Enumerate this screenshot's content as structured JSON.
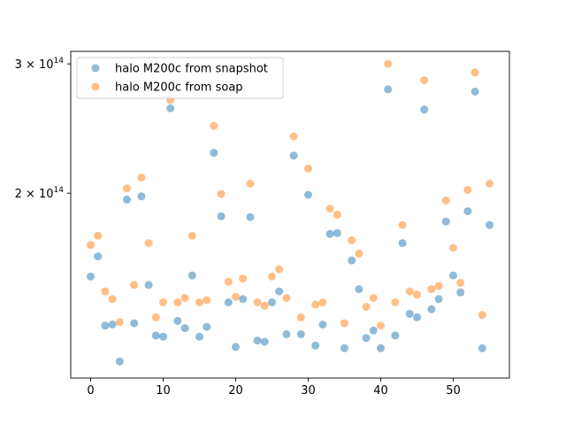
{
  "chart_data": {
    "type": "scatter",
    "title": "",
    "xlabel": "",
    "ylabel": "",
    "y_scale": "log",
    "xlim": [
      -2.75,
      57.75
    ],
    "ylim": [
      112000000000000.0,
      312000000000000.0
    ],
    "x_ticks": [
      0,
      10,
      20,
      30,
      40,
      50
    ],
    "x_tick_labels": [
      "0",
      "10",
      "20",
      "30",
      "40",
      "50"
    ],
    "y_ticks": [
      200000000000000.0,
      300000000000000.0
    ],
    "y_tick_labels": [
      {
        "mantissa": "2",
        "times": "×",
        "base": "10",
        "exp": "14"
      },
      {
        "mantissa": "3",
        "times": "×",
        "base": "10",
        "exp": "14"
      }
    ],
    "grid": false,
    "legend_position": "upper left",
    "series": [
      {
        "name": "halo M200c from snapshot",
        "color": "#1f77b4",
        "x": [
          0,
          1,
          2,
          3,
          4,
          5,
          6,
          7,
          8,
          9,
          10,
          11,
          12,
          13,
          14,
          15,
          16,
          17,
          18,
          19,
          20,
          21,
          22,
          23,
          24,
          25,
          26,
          27,
          28,
          29,
          30,
          31,
          32,
          33,
          34,
          35,
          36,
          37,
          38,
          39,
          40,
          41,
          42,
          43,
          44,
          45,
          46,
          47,
          48,
          49,
          50,
          51,
          52,
          53,
          54,
          55
        ],
        "y": [
          154000000000000.0,
          164000000000000.0,
          132000000000000.0,
          132500000000000.0,
          118000000000000.0,
          196000000000000.0,
          133000000000000.0,
          198000000000000.0,
          150000000000000.0,
          128000000000000.0,
          127500000000000.0,
          261000000000000.0,
          134000000000000.0,
          131000000000000.0,
          154500000000000.0,
          127500000000000.0,
          131500000000000.0,
          227000000000000.0,
          186000000000000.0,
          142000000000000.0,
          123500000000000.0,
          143500000000000.0,
          185500000000000.0,
          126000000000000.0,
          125500000000000.0,
          142000000000000.0,
          147000000000000.0,
          128500000000000.0,
          225000000000000.0,
          128500000000000.0,
          199000000000000.0,
          124000000000000.0,
          132500000000000.0,
          176000000000000.0,
          176500000000000.0,
          123000000000000.0,
          162000000000000.0,
          148000000000000.0,
          127000000000000.0,
          130000000000000.0,
          123000000000000.0,
          277000000000000.0,
          128000000000000.0,
          171000000000000.0,
          137000000000000.0,
          135500000000000.0,
          260000000000000.0,
          139000000000000.0,
          143500000000000.0,
          183000000000000.0,
          154500000000000.0,
          146500000000000.0,
          189000000000000.0,
          275000000000000.0,
          123000000000000.0,
          181000000000000.0
        ]
      },
      {
        "name": "halo M200c from soap",
        "color": "#ff7f0e",
        "x": [
          0,
          1,
          2,
          3,
          4,
          5,
          6,
          7,
          8,
          9,
          10,
          11,
          12,
          13,
          14,
          15,
          16,
          17,
          18,
          19,
          20,
          21,
          22,
          23,
          24,
          25,
          26,
          27,
          28,
          29,
          30,
          31,
          32,
          33,
          34,
          35,
          36,
          37,
          38,
          39,
          40,
          41,
          42,
          43,
          44,
          45,
          46,
          47,
          48,
          49,
          50,
          51,
          52,
          53,
          54,
          55
        ],
        "y": [
          170000000000000.0,
          175000000000000.0,
          147000000000000.0,
          143500000000000.0,
          133500000000000.0,
          203000000000000.0,
          150000000000000.0,
          210000000000000.0,
          171000000000000.0,
          135500000000000.0,
          142000000000000.0,
          268000000000000.0,
          142000000000000.0,
          144000000000000.0,
          175000000000000.0,
          142000000000000.0,
          143000000000000.0,
          247000000000000.0,
          199500000000000.0,
          151500000000000.0,
          144500000000000.0,
          153000000000000.0,
          206000000000000.0,
          142000000000000.0,
          140500000000000.0,
          154000000000000.0,
          157500000000000.0,
          144000000000000.0,
          239000000000000.0,
          135500000000000.0,
          216000000000000.0,
          141000000000000.0,
          142000000000000.0,
          190500000000000.0,
          187000000000000.0,
          133000000000000.0,
          172500000000000.0,
          165500000000000.0,
          140000000000000.0,
          144000000000000.0,
          132000000000000.0,
          300000000000000.0,
          142000000000000.0,
          181000000000000.0,
          147000000000000.0,
          145500000000000.0,
          285000000000000.0,
          148000000000000.0,
          149500000000000.0,
          195500000000000.0,
          168500000000000.0,
          151000000000000.0,
          202000000000000.0,
          292000000000000.0,
          136500000000000.0,
          206000000000000.0
        ]
      }
    ]
  }
}
